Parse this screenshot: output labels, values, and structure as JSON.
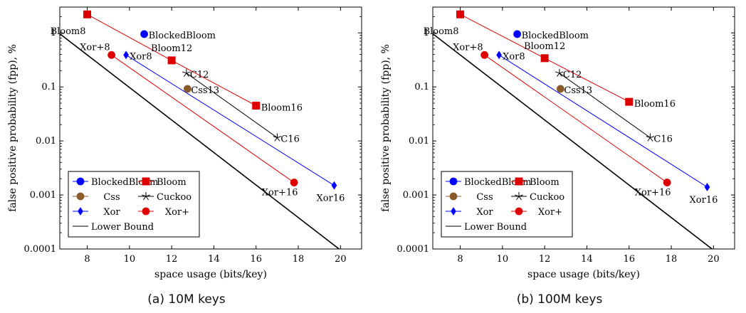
{
  "chart_data": [
    {
      "type": "line",
      "caption": "(a) 10M keys",
      "xlabel": "space usage (bits/key)",
      "ylabel": "false positive probability (fpp), %",
      "xscale": "linear",
      "yscale": "log",
      "xlim": [
        6.7,
        21
      ],
      "ylim": [
        0.0001,
        3
      ],
      "xticks": [
        "8",
        "10",
        "12",
        "14",
        "16",
        "18",
        "20"
      ],
      "yticks": [
        "0.0001",
        "0.001",
        "0.01",
        "0.1",
        "1"
      ],
      "legend_position": "bottom-left",
      "series": [
        {
          "name": "BlockedBloom",
          "color": "#0000ff",
          "marker": "circle",
          "points": [
            [
              10.7,
              0.95
            ]
          ],
          "labels": [
            "BlockedBloom"
          ]
        },
        {
          "name": "Bloom",
          "color": "#dd0000",
          "marker": "square",
          "points": [
            [
              8,
              2.2
            ],
            [
              12,
              0.31
            ],
            [
              16,
              0.045
            ]
          ],
          "labels": [
            "Bloom8",
            "Bloom12",
            "Bloom16"
          ]
        },
        {
          "name": "Css",
          "color": "#8b5a2b",
          "marker": "circle",
          "points": [
            [
              12.75,
              0.092
            ]
          ],
          "labels": [
            "Css13"
          ]
        },
        {
          "name": "Cuckoo",
          "color": "#000000",
          "marker": "star",
          "points": [
            [
              12.7,
              0.18
            ],
            [
              17,
              0.0115
            ]
          ],
          "labels": [
            "C12",
            "C16"
          ]
        },
        {
          "name": "Xor",
          "color": "#0000ff",
          "marker": "diamond",
          "points": [
            [
              9.84,
              0.39
            ],
            [
              19.7,
              0.0015
            ]
          ],
          "labels": [
            "Xor8",
            "Xor16"
          ]
        },
        {
          "name": "Xor+",
          "color": "#dd0000",
          "marker": "circle",
          "points": [
            [
              9.15,
              0.39
            ],
            [
              17.8,
              0.0017
            ]
          ],
          "labels": [
            "Xor+8",
            "Xor+16"
          ]
        },
        {
          "name": "Lower Bound",
          "color": "#000000",
          "marker": "none",
          "points": [
            [
              6.644,
              1.0
            ],
            [
              19.93,
              0.0001
            ]
          ],
          "labels": []
        }
      ]
    },
    {
      "type": "line",
      "caption": "(b) 100M keys",
      "xlabel": "space usage (bits/key)",
      "ylabel": "false positive probability (fpp), %",
      "xscale": "linear",
      "yscale": "log",
      "xlim": [
        6.7,
        21
      ],
      "ylim": [
        0.0001,
        3
      ],
      "xticks": [
        "8",
        "10",
        "12",
        "14",
        "16",
        "18",
        "20"
      ],
      "yticks": [
        "0.0001",
        "0.001",
        "0.01",
        "0.1",
        "1"
      ],
      "legend_position": "bottom-left",
      "series": [
        {
          "name": "BlockedBloom",
          "color": "#0000ff",
          "marker": "circle",
          "points": [
            [
              10.7,
              0.95
            ]
          ],
          "labels": [
            "BlockedBloom"
          ]
        },
        {
          "name": "Bloom",
          "color": "#dd0000",
          "marker": "square",
          "points": [
            [
              8,
              2.2
            ],
            [
              12,
              0.34
            ],
            [
              16,
              0.053
            ]
          ],
          "labels": [
            "Bloom8",
            "Bloom12",
            "Bloom16"
          ]
        },
        {
          "name": "Css",
          "color": "#8b5a2b",
          "marker": "circle",
          "points": [
            [
              12.75,
              0.092
            ]
          ],
          "labels": [
            "Css13"
          ]
        },
        {
          "name": "Cuckoo",
          "color": "#000000",
          "marker": "star",
          "points": [
            [
              12.7,
              0.18
            ],
            [
              17,
              0.0115
            ]
          ],
          "labels": [
            "C12",
            "C16"
          ]
        },
        {
          "name": "Xor",
          "color": "#0000ff",
          "marker": "diamond",
          "points": [
            [
              9.84,
              0.39
            ],
            [
              19.7,
              0.0014
            ]
          ],
          "labels": [
            "Xor8",
            "Xor16"
          ]
        },
        {
          "name": "Xor+",
          "color": "#dd0000",
          "marker": "circle",
          "points": [
            [
              9.15,
              0.39
            ],
            [
              17.8,
              0.0017
            ]
          ],
          "labels": [
            "Xor+8",
            "Xor+16"
          ]
        },
        {
          "name": "Lower Bound",
          "color": "#000000",
          "marker": "none",
          "points": [
            [
              6.644,
              1.0
            ],
            [
              19.93,
              0.0001
            ]
          ],
          "labels": []
        }
      ]
    }
  ]
}
